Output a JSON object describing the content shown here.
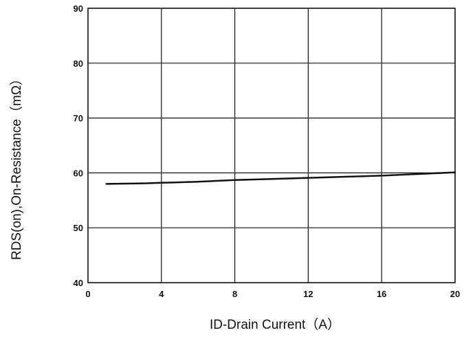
{
  "chart_data": {
    "type": "line",
    "title": "",
    "xlabel": "ID-Drain Current（A）",
    "ylabel": "RDS(on),On-Resistance（mΩ）",
    "xlim": [
      0,
      20
    ],
    "ylim": [
      40,
      90
    ],
    "x_ticks": [
      "0",
      "4",
      "8",
      "12",
      "16",
      "20"
    ],
    "y_ticks": [
      "40",
      "50",
      "60",
      "70",
      "80",
      "90"
    ],
    "grid": true,
    "series": [
      {
        "x": [
          1,
          3,
          4,
          6,
          8,
          10,
          12,
          14,
          16,
          18,
          20
        ],
        "values": [
          58.0,
          58.1,
          58.2,
          58.4,
          58.7,
          58.9,
          59.1,
          59.3,
          59.5,
          59.8,
          60.1
        ]
      }
    ]
  },
  "colors": {
    "line": "#111111",
    "grid": "#111111",
    "background": "#ffffff"
  }
}
